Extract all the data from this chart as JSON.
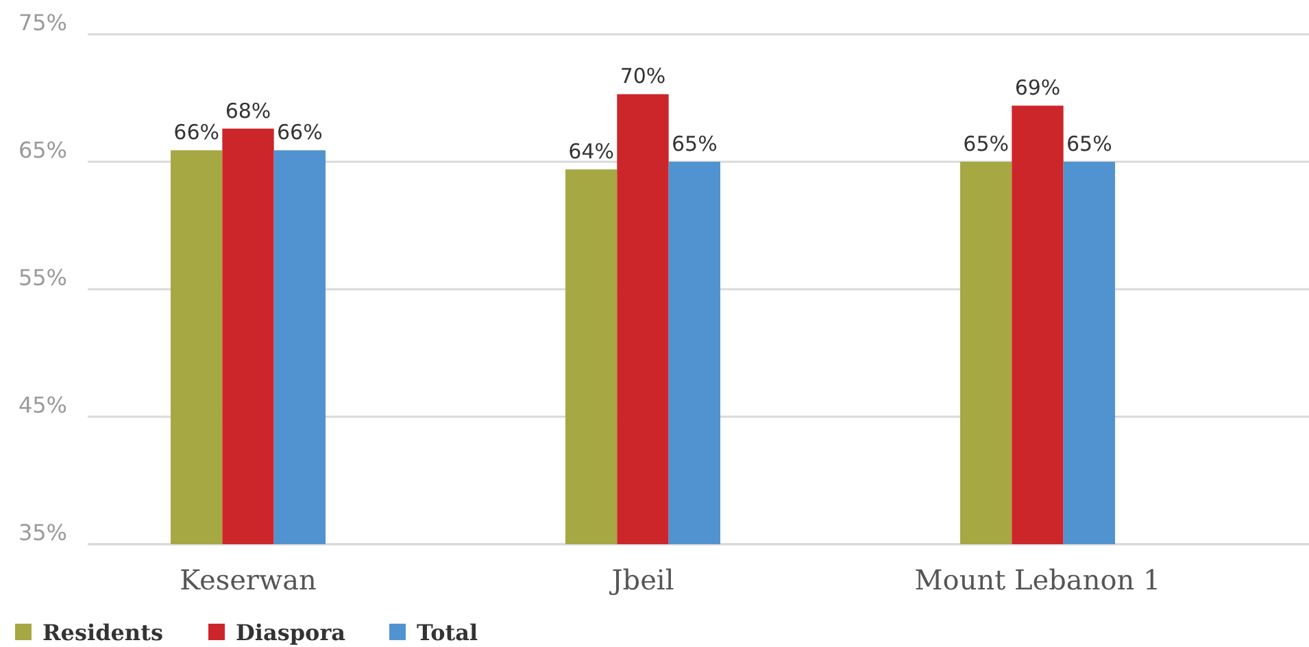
{
  "chart_data": {
    "type": "bar",
    "categories": [
      "Keserwan",
      "Jbeil",
      "Mount Lebanon 1"
    ],
    "series": [
      {
        "name": "Residents",
        "color": "#a5a843",
        "values": [
          65.9,
          64.4,
          65
        ],
        "value_labels": [
          "66%",
          "64%",
          "65%"
        ]
      },
      {
        "name": "Diaspora",
        "color": "#cc262b",
        "values": [
          67.6,
          70.3,
          69.4
        ],
        "value_labels": [
          "68%",
          "70%",
          "69%"
        ]
      },
      {
        "name": "Total",
        "color": "#5193d0",
        "values": [
          65.9,
          65,
          65
        ],
        "value_labels": [
          "66%",
          "65%",
          "65%"
        ]
      }
    ],
    "ylim": [
      35,
      75
    ],
    "yticks": [
      {
        "value": 35,
        "label": "35%"
      },
      {
        "value": 45,
        "label": "45%"
      },
      {
        "value": 55,
        "label": "55%"
      },
      {
        "value": 65,
        "label": "65%"
      },
      {
        "value": 75,
        "label": "75%"
      }
    ],
    "grid": "y",
    "legend": "bottom left"
  }
}
